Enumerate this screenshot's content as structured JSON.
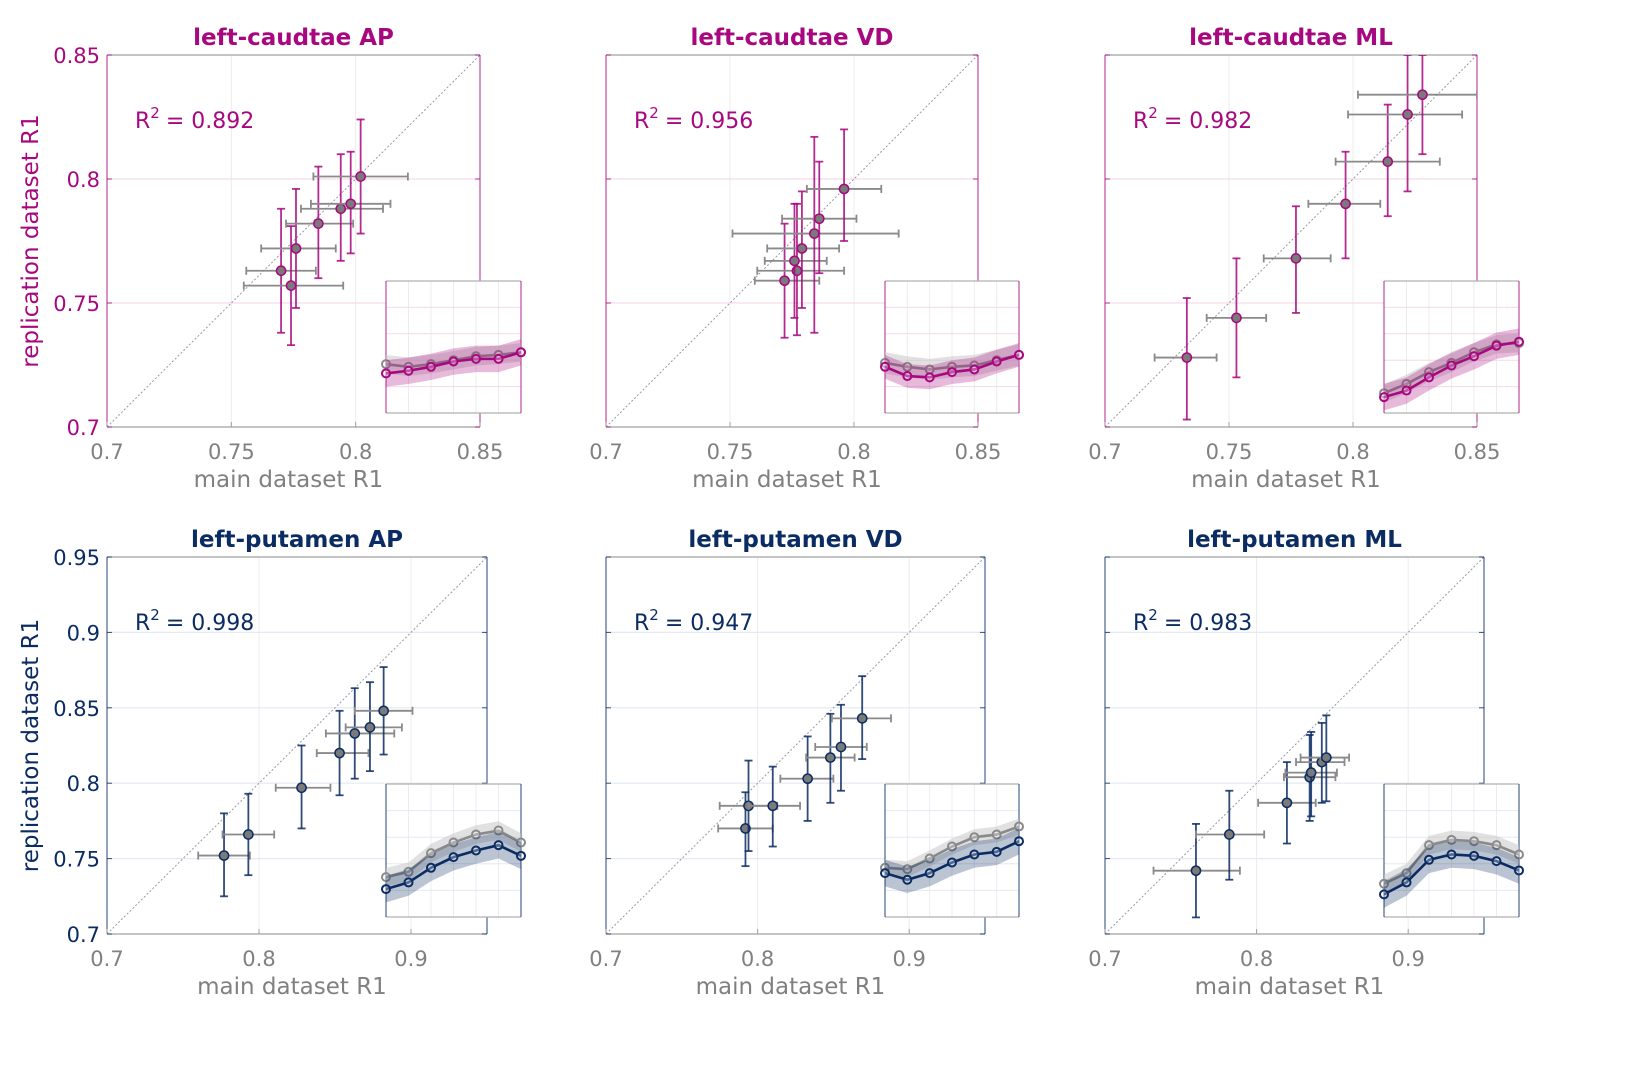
{
  "figure": {
    "colors": {
      "caudate": "#A8087F",
      "putamen": "#0B2C62",
      "gray": "#808080",
      "marker_fill": "#7a7a7a",
      "diag": "#9a9aa8"
    },
    "xlabel": "main dataset R1",
    "ylabel": "replication dataset R1"
  },
  "chart_data": [
    {
      "type": "scatter",
      "title": "left-caudtae AP",
      "group": "caudate",
      "r2_label": "R",
      "r2_sup": "2",
      "r2_value": "= 0.892",
      "xlabel": "main dataset R1",
      "ylabel": "replication dataset R1",
      "xlim": [
        0.7,
        0.85
      ],
      "ylim": [
        0.7,
        0.85
      ],
      "xticks": [
        0.7,
        0.75,
        0.8,
        0.85
      ],
      "xticklabels": [
        "0.7",
        "0.75",
        "0.8",
        "0.85"
      ],
      "yticks": [
        0.7,
        0.75,
        0.8,
        0.85
      ],
      "yticklabels": [
        "0.7",
        "0.75",
        "0.8",
        "0.85"
      ],
      "show_yticklabels": true,
      "grid": true,
      "identity_line": true,
      "points": [
        {
          "x": 0.77,
          "y": 0.763,
          "xlo": 0.756,
          "xhi": 0.784,
          "ylo": 0.738,
          "yhi": 0.788
        },
        {
          "x": 0.774,
          "y": 0.757,
          "xlo": 0.755,
          "xhi": 0.795,
          "ylo": 0.733,
          "yhi": 0.781
        },
        {
          "x": 0.776,
          "y": 0.772,
          "xlo": 0.762,
          "xhi": 0.792,
          "ylo": 0.748,
          "yhi": 0.796
        },
        {
          "x": 0.785,
          "y": 0.782,
          "xlo": 0.772,
          "xhi": 0.799,
          "ylo": 0.76,
          "yhi": 0.805
        },
        {
          "x": 0.794,
          "y": 0.788,
          "xlo": 0.778,
          "xhi": 0.811,
          "ylo": 0.767,
          "yhi": 0.81
        },
        {
          "x": 0.798,
          "y": 0.79,
          "xlo": 0.782,
          "xhi": 0.814,
          "ylo": 0.77,
          "yhi": 0.811
        },
        {
          "x": 0.802,
          "y": 0.801,
          "xlo": 0.783,
          "xhi": 0.821,
          "ylo": 0.778,
          "yhi": 0.824
        }
      ],
      "inset": {
        "gray": {
          "values": [
            0.37,
            0.35,
            0.37,
            0.4,
            0.43,
            0.44,
            0.46
          ],
          "band": 0.07
        },
        "color": {
          "values": [
            0.3,
            0.32,
            0.35,
            0.39,
            0.41,
            0.41,
            0.46
          ],
          "band": 0.1
        }
      }
    },
    {
      "type": "scatter",
      "title": "left-caudtae VD",
      "group": "caudate",
      "r2_label": "R",
      "r2_sup": "2",
      "r2_value": "= 0.956",
      "xlabel": "main dataset R1",
      "ylabel": "",
      "xlim": [
        0.7,
        0.85
      ],
      "ylim": [
        0.7,
        0.85
      ],
      "xticks": [
        0.7,
        0.75,
        0.8,
        0.85
      ],
      "xticklabels": [
        "0.7",
        "0.75",
        "0.8",
        "0.85"
      ],
      "yticks": [
        0.7,
        0.75,
        0.8,
        0.85
      ],
      "yticklabels": [
        "0.7",
        "0.75",
        "0.8",
        "0.85"
      ],
      "show_yticklabels": false,
      "grid": true,
      "identity_line": true,
      "points": [
        {
          "x": 0.772,
          "y": 0.759,
          "xlo": 0.76,
          "xhi": 0.786,
          "ylo": 0.736,
          "yhi": 0.782
        },
        {
          "x": 0.777,
          "y": 0.763,
          "xlo": 0.761,
          "xhi": 0.796,
          "ylo": 0.737,
          "yhi": 0.79
        },
        {
          "x": 0.776,
          "y": 0.767,
          "xlo": 0.764,
          "xhi": 0.789,
          "ylo": 0.744,
          "yhi": 0.79
        },
        {
          "x": 0.779,
          "y": 0.772,
          "xlo": 0.765,
          "xhi": 0.794,
          "ylo": 0.748,
          "yhi": 0.795
        },
        {
          "x": 0.784,
          "y": 0.778,
          "xlo": 0.751,
          "xhi": 0.818,
          "ylo": 0.738,
          "yhi": 0.817
        },
        {
          "x": 0.786,
          "y": 0.784,
          "xlo": 0.771,
          "xhi": 0.801,
          "ylo": 0.762,
          "yhi": 0.807
        },
        {
          "x": 0.796,
          "y": 0.796,
          "xlo": 0.781,
          "xhi": 0.811,
          "ylo": 0.775,
          "yhi": 0.82
        }
      ],
      "inset": {
        "gray": {
          "values": [
            0.38,
            0.35,
            0.33,
            0.35,
            0.36,
            0.4,
            0.44
          ],
          "band": 0.08
        },
        "color": {
          "values": [
            0.35,
            0.28,
            0.27,
            0.31,
            0.33,
            0.39,
            0.44
          ],
          "band": 0.09
        }
      }
    },
    {
      "type": "scatter",
      "title": "left-caudtae ML",
      "group": "caudate",
      "r2_label": "R",
      "r2_sup": "2",
      "r2_value": "= 0.982",
      "xlabel": "main dataset R1",
      "ylabel": "",
      "xlim": [
        0.7,
        0.85
      ],
      "ylim": [
        0.7,
        0.85
      ],
      "xticks": [
        0.7,
        0.75,
        0.8,
        0.85
      ],
      "xticklabels": [
        "0.7",
        "0.75",
        "0.8",
        "0.85"
      ],
      "yticks": [
        0.7,
        0.75,
        0.8,
        0.85
      ],
      "yticklabels": [
        "0.7",
        "0.75",
        "0.8",
        "0.85"
      ],
      "show_yticklabels": false,
      "grid": true,
      "identity_line": true,
      "points": [
        {
          "x": 0.733,
          "y": 0.728,
          "xlo": 0.72,
          "xhi": 0.745,
          "ylo": 0.703,
          "yhi": 0.752
        },
        {
          "x": 0.753,
          "y": 0.744,
          "xlo": 0.741,
          "xhi": 0.765,
          "ylo": 0.72,
          "yhi": 0.768
        },
        {
          "x": 0.777,
          "y": 0.768,
          "xlo": 0.764,
          "xhi": 0.791,
          "ylo": 0.746,
          "yhi": 0.789
        },
        {
          "x": 0.797,
          "y": 0.79,
          "xlo": 0.782,
          "xhi": 0.811,
          "ylo": 0.768,
          "yhi": 0.811
        },
        {
          "x": 0.814,
          "y": 0.807,
          "xlo": 0.793,
          "xhi": 0.835,
          "ylo": 0.785,
          "yhi": 0.83
        },
        {
          "x": 0.822,
          "y": 0.826,
          "xlo": 0.798,
          "xhi": 0.844,
          "ylo": 0.795,
          "yhi": 0.85
        },
        {
          "x": 0.828,
          "y": 0.834,
          "xlo": 0.802,
          "xhi": 0.85,
          "ylo": 0.81,
          "yhi": 0.85
        }
      ],
      "inset": {
        "gray": {
          "values": [
            0.15,
            0.22,
            0.31,
            0.38,
            0.46,
            0.52,
            0.53
          ],
          "band": 0.07
        },
        "color": {
          "values": [
            0.12,
            0.17,
            0.27,
            0.36,
            0.43,
            0.51,
            0.54
          ],
          "band": 0.1
        }
      }
    },
    {
      "type": "scatter",
      "title": "left-putamen AP",
      "group": "putamen",
      "r2_label": "R",
      "r2_sup": "2",
      "r2_value": "= 0.998",
      "xlabel": "main dataset R1",
      "ylabel": "replication dataset R1",
      "xlim": [
        0.7,
        0.95
      ],
      "ylim": [
        0.7,
        0.95
      ],
      "xticks": [
        0.7,
        0.8,
        0.9
      ],
      "xticklabels": [
        "0.7",
        "0.8",
        "0.9"
      ],
      "yticks": [
        0.7,
        0.75,
        0.8,
        0.85,
        0.9,
        0.95
      ],
      "yticklabels": [
        "0.7",
        "0.75",
        "0.8",
        "0.85",
        "0.9",
        "0.95"
      ],
      "show_yticklabels": true,
      "grid": true,
      "identity_line": true,
      "points": [
        {
          "x": 0.777,
          "y": 0.752,
          "xlo": 0.76,
          "xhi": 0.794,
          "ylo": 0.725,
          "yhi": 0.78
        },
        {
          "x": 0.793,
          "y": 0.766,
          "xlo": 0.776,
          "xhi": 0.81,
          "ylo": 0.739,
          "yhi": 0.793
        },
        {
          "x": 0.828,
          "y": 0.797,
          "xlo": 0.811,
          "xhi": 0.847,
          "ylo": 0.77,
          "yhi": 0.825
        },
        {
          "x": 0.853,
          "y": 0.82,
          "xlo": 0.838,
          "xhi": 0.872,
          "ylo": 0.792,
          "yhi": 0.848
        },
        {
          "x": 0.863,
          "y": 0.833,
          "xlo": 0.844,
          "xhi": 0.889,
          "ylo": 0.803,
          "yhi": 0.863
        },
        {
          "x": 0.873,
          "y": 0.837,
          "xlo": 0.857,
          "xhi": 0.894,
          "ylo": 0.808,
          "yhi": 0.867
        },
        {
          "x": 0.882,
          "y": 0.848,
          "xlo": 0.863,
          "xhi": 0.901,
          "ylo": 0.819,
          "yhi": 0.877
        }
      ],
      "inset": {
        "gray": {
          "values": [
            0.3,
            0.34,
            0.48,
            0.56,
            0.62,
            0.65,
            0.56
          ],
          "band": 0.07
        },
        "color": {
          "values": [
            0.21,
            0.26,
            0.37,
            0.45,
            0.5,
            0.54,
            0.46
          ],
          "band": 0.1
        }
      }
    },
    {
      "type": "scatter",
      "title": "left-putamen VD",
      "group": "putamen",
      "r2_label": "R",
      "r2_sup": "2",
      "r2_value": "= 0.947",
      "xlabel": "main dataset R1",
      "ylabel": "",
      "xlim": [
        0.7,
        0.95
      ],
      "ylim": [
        0.7,
        0.95
      ],
      "xticks": [
        0.7,
        0.8,
        0.9
      ],
      "xticklabels": [
        "0.7",
        "0.8",
        "0.9"
      ],
      "yticks": [
        0.7,
        0.75,
        0.8,
        0.85,
        0.9,
        0.95
      ],
      "yticklabels": [
        "0.7",
        "0.75",
        "0.8",
        "0.85",
        "0.9",
        "0.95"
      ],
      "show_yticklabels": false,
      "grid": true,
      "identity_line": true,
      "points": [
        {
          "x": 0.792,
          "y": 0.77,
          "xlo": 0.774,
          "xhi": 0.81,
          "ylo": 0.745,
          "yhi": 0.794
        },
        {
          "x": 0.794,
          "y": 0.785,
          "xlo": 0.775,
          "xhi": 0.813,
          "ylo": 0.755,
          "yhi": 0.815
        },
        {
          "x": 0.81,
          "y": 0.785,
          "xlo": 0.794,
          "xhi": 0.828,
          "ylo": 0.758,
          "yhi": 0.811
        },
        {
          "x": 0.833,
          "y": 0.803,
          "xlo": 0.815,
          "xhi": 0.85,
          "ylo": 0.775,
          "yhi": 0.831
        },
        {
          "x": 0.848,
          "y": 0.817,
          "xlo": 0.832,
          "xhi": 0.864,
          "ylo": 0.787,
          "yhi": 0.846
        },
        {
          "x": 0.855,
          "y": 0.824,
          "xlo": 0.838,
          "xhi": 0.872,
          "ylo": 0.795,
          "yhi": 0.852
        },
        {
          "x": 0.869,
          "y": 0.843,
          "xlo": 0.849,
          "xhi": 0.888,
          "ylo": 0.816,
          "yhi": 0.871
        }
      ],
      "inset": {
        "gray": {
          "values": [
            0.37,
            0.36,
            0.44,
            0.53,
            0.6,
            0.62,
            0.68
          ],
          "band": 0.06
        },
        "color": {
          "values": [
            0.33,
            0.28,
            0.33,
            0.41,
            0.47,
            0.49,
            0.57
          ],
          "band": 0.1
        }
      }
    },
    {
      "type": "scatter",
      "title": "left-putamen ML",
      "group": "putamen",
      "r2_label": "R",
      "r2_sup": "2",
      "r2_value": "= 0.983",
      "xlabel": "main dataset R1",
      "ylabel": "",
      "xlim": [
        0.7,
        0.95
      ],
      "ylim": [
        0.7,
        0.95
      ],
      "xticks": [
        0.7,
        0.8,
        0.9
      ],
      "xticklabels": [
        "0.7",
        "0.8",
        "0.9"
      ],
      "yticks": [
        0.7,
        0.75,
        0.8,
        0.85,
        0.9,
        0.95
      ],
      "yticklabels": [
        "0.7",
        "0.75",
        "0.8",
        "0.85",
        "0.9",
        "0.95"
      ],
      "show_yticklabels": false,
      "grid": true,
      "identity_line": true,
      "points": [
        {
          "x": 0.76,
          "y": 0.742,
          "xlo": 0.732,
          "xhi": 0.789,
          "ylo": 0.711,
          "yhi": 0.773
        },
        {
          "x": 0.782,
          "y": 0.766,
          "xlo": 0.76,
          "xhi": 0.805,
          "ylo": 0.736,
          "yhi": 0.795
        },
        {
          "x": 0.82,
          "y": 0.787,
          "xlo": 0.801,
          "xhi": 0.839,
          "ylo": 0.76,
          "yhi": 0.814
        },
        {
          "x": 0.835,
          "y": 0.804,
          "xlo": 0.818,
          "xhi": 0.852,
          "ylo": 0.775,
          "yhi": 0.832
        },
        {
          "x": 0.836,
          "y": 0.807,
          "xlo": 0.819,
          "xhi": 0.853,
          "ylo": 0.778,
          "yhi": 0.834
        },
        {
          "x": 0.843,
          "y": 0.814,
          "xlo": 0.826,
          "xhi": 0.858,
          "ylo": 0.787,
          "yhi": 0.84
        },
        {
          "x": 0.846,
          "y": 0.817,
          "xlo": 0.829,
          "xhi": 0.861,
          "ylo": 0.788,
          "yhi": 0.845
        }
      ],
      "inset": {
        "gray": {
          "values": [
            0.25,
            0.33,
            0.54,
            0.58,
            0.57,
            0.54,
            0.47
          ],
          "band": 0.07
        },
        "color": {
          "values": [
            0.17,
            0.26,
            0.43,
            0.47,
            0.46,
            0.42,
            0.35
          ],
          "band": 0.1
        }
      }
    }
  ]
}
